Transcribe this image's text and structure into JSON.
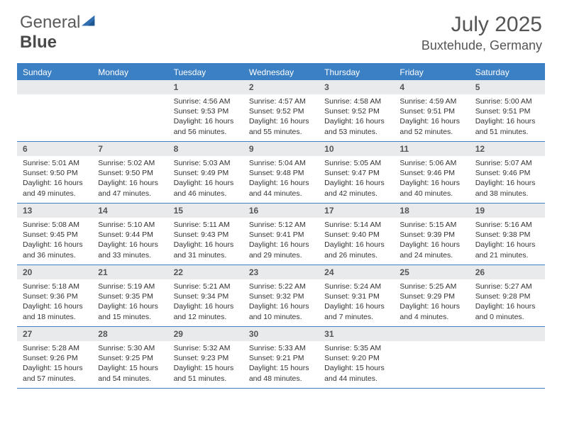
{
  "brand": {
    "part1": "General",
    "part2": "Blue"
  },
  "title": "July 2025",
  "location": "Buxtehude, Germany",
  "colors": {
    "accent": "#3b7fc4",
    "header_bg": "#3b7fc4",
    "daynum_bg": "#e8eaec",
    "text": "#333333",
    "title_text": "#555555"
  },
  "day_names": [
    "Sunday",
    "Monday",
    "Tuesday",
    "Wednesday",
    "Thursday",
    "Friday",
    "Saturday"
  ],
  "layout": {
    "first_weekday_index": 2,
    "days_in_month": 31
  },
  "days": [
    {
      "n": 1,
      "sunrise": "4:56 AM",
      "sunset": "9:53 PM",
      "daylight": "16 hours and 56 minutes."
    },
    {
      "n": 2,
      "sunrise": "4:57 AM",
      "sunset": "9:52 PM",
      "daylight": "16 hours and 55 minutes."
    },
    {
      "n": 3,
      "sunrise": "4:58 AM",
      "sunset": "9:52 PM",
      "daylight": "16 hours and 53 minutes."
    },
    {
      "n": 4,
      "sunrise": "4:59 AM",
      "sunset": "9:51 PM",
      "daylight": "16 hours and 52 minutes."
    },
    {
      "n": 5,
      "sunrise": "5:00 AM",
      "sunset": "9:51 PM",
      "daylight": "16 hours and 51 minutes."
    },
    {
      "n": 6,
      "sunrise": "5:01 AM",
      "sunset": "9:50 PM",
      "daylight": "16 hours and 49 minutes."
    },
    {
      "n": 7,
      "sunrise": "5:02 AM",
      "sunset": "9:50 PM",
      "daylight": "16 hours and 47 minutes."
    },
    {
      "n": 8,
      "sunrise": "5:03 AM",
      "sunset": "9:49 PM",
      "daylight": "16 hours and 46 minutes."
    },
    {
      "n": 9,
      "sunrise": "5:04 AM",
      "sunset": "9:48 PM",
      "daylight": "16 hours and 44 minutes."
    },
    {
      "n": 10,
      "sunrise": "5:05 AM",
      "sunset": "9:47 PM",
      "daylight": "16 hours and 42 minutes."
    },
    {
      "n": 11,
      "sunrise": "5:06 AM",
      "sunset": "9:46 PM",
      "daylight": "16 hours and 40 minutes."
    },
    {
      "n": 12,
      "sunrise": "5:07 AM",
      "sunset": "9:46 PM",
      "daylight": "16 hours and 38 minutes."
    },
    {
      "n": 13,
      "sunrise": "5:08 AM",
      "sunset": "9:45 PM",
      "daylight": "16 hours and 36 minutes."
    },
    {
      "n": 14,
      "sunrise": "5:10 AM",
      "sunset": "9:44 PM",
      "daylight": "16 hours and 33 minutes."
    },
    {
      "n": 15,
      "sunrise": "5:11 AM",
      "sunset": "9:43 PM",
      "daylight": "16 hours and 31 minutes."
    },
    {
      "n": 16,
      "sunrise": "5:12 AM",
      "sunset": "9:41 PM",
      "daylight": "16 hours and 29 minutes."
    },
    {
      "n": 17,
      "sunrise": "5:14 AM",
      "sunset": "9:40 PM",
      "daylight": "16 hours and 26 minutes."
    },
    {
      "n": 18,
      "sunrise": "5:15 AM",
      "sunset": "9:39 PM",
      "daylight": "16 hours and 24 minutes."
    },
    {
      "n": 19,
      "sunrise": "5:16 AM",
      "sunset": "9:38 PM",
      "daylight": "16 hours and 21 minutes."
    },
    {
      "n": 20,
      "sunrise": "5:18 AM",
      "sunset": "9:36 PM",
      "daylight": "16 hours and 18 minutes."
    },
    {
      "n": 21,
      "sunrise": "5:19 AM",
      "sunset": "9:35 PM",
      "daylight": "16 hours and 15 minutes."
    },
    {
      "n": 22,
      "sunrise": "5:21 AM",
      "sunset": "9:34 PM",
      "daylight": "16 hours and 12 minutes."
    },
    {
      "n": 23,
      "sunrise": "5:22 AM",
      "sunset": "9:32 PM",
      "daylight": "16 hours and 10 minutes."
    },
    {
      "n": 24,
      "sunrise": "5:24 AM",
      "sunset": "9:31 PM",
      "daylight": "16 hours and 7 minutes."
    },
    {
      "n": 25,
      "sunrise": "5:25 AM",
      "sunset": "9:29 PM",
      "daylight": "16 hours and 4 minutes."
    },
    {
      "n": 26,
      "sunrise": "5:27 AM",
      "sunset": "9:28 PM",
      "daylight": "16 hours and 0 minutes."
    },
    {
      "n": 27,
      "sunrise": "5:28 AM",
      "sunset": "9:26 PM",
      "daylight": "15 hours and 57 minutes."
    },
    {
      "n": 28,
      "sunrise": "5:30 AM",
      "sunset": "9:25 PM",
      "daylight": "15 hours and 54 minutes."
    },
    {
      "n": 29,
      "sunrise": "5:32 AM",
      "sunset": "9:23 PM",
      "daylight": "15 hours and 51 minutes."
    },
    {
      "n": 30,
      "sunrise": "5:33 AM",
      "sunset": "9:21 PM",
      "daylight": "15 hours and 48 minutes."
    },
    {
      "n": 31,
      "sunrise": "5:35 AM",
      "sunset": "9:20 PM",
      "daylight": "15 hours and 44 minutes."
    }
  ],
  "labels": {
    "sunrise": "Sunrise:",
    "sunset": "Sunset:",
    "daylight": "Daylight:"
  }
}
